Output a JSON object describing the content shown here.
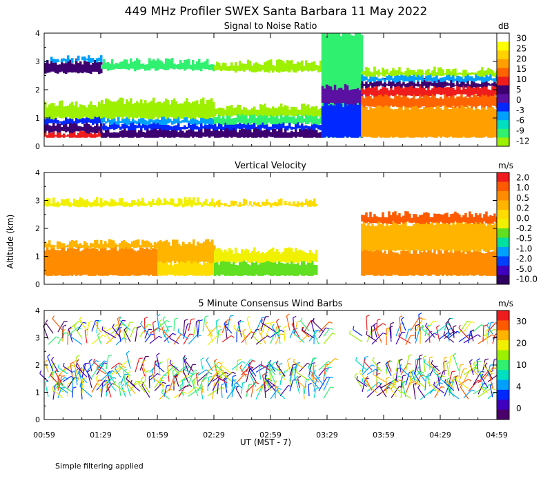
{
  "figure": {
    "title": "449 MHz Profiler SWEX Santa Barbara 11 May 2022",
    "ylabel": "Altitude (km)",
    "xlabel": "UT  (MST - 7)",
    "footnote": "Simple filtering applied"
  },
  "chart_data": [
    {
      "type": "heatmap",
      "title": "Signal to Noise Ratio",
      "unit_label": "dB",
      "ylabel": "Altitude (km)",
      "xlabel": "UT  (MST - 7)",
      "x_ticks": [
        "00:59",
        "01:29",
        "01:59",
        "02:29",
        "02:59",
        "03:29",
        "03:59",
        "04:29",
        "04:59"
      ],
      "xlim": [
        "00:59",
        "04:59"
      ],
      "ylim": [
        0,
        4
      ],
      "y_ticks": [
        0,
        1,
        2,
        3,
        4
      ],
      "colorbar": {
        "labels": [
          "30",
          "25",
          "20",
          "15",
          "10",
          "5",
          "0",
          "-3",
          "-6",
          "-9",
          "-12"
        ],
        "colors": [
          "#ffffff",
          "#ffff00",
          "#ffd200",
          "#ffa000",
          "#ff6400",
          "#ee1c1c",
          "#3c0070",
          "#5a10a0",
          "#0028ff",
          "#00a0ff",
          "#00e0c0",
          "#30f070",
          "#9cf000"
        ]
      },
      "background_top_km": 0.3,
      "segments": [
        {
          "start": "00:59",
          "end": "01:29",
          "layers": [
            [
              0.3,
              0.5,
              "#ee1c1c"
            ],
            [
              0.5,
              0.8,
              "#3c0070"
            ],
            [
              0.8,
              1.0,
              "#0028ff"
            ],
            [
              1.0,
              1.5,
              "#9cf000"
            ],
            [
              2.6,
              3.0,
              "#3c0070"
            ],
            [
              3.0,
              3.1,
              "#00a0ff"
            ]
          ]
        },
        {
          "start": "01:29",
          "end": "02:29",
          "layers": [
            [
              0.3,
              0.6,
              "#3c0070"
            ],
            [
              0.6,
              0.8,
              "#0028ff"
            ],
            [
              0.8,
              1.0,
              "#00a0ff"
            ],
            [
              1.0,
              1.6,
              "#9cf000"
            ],
            [
              2.7,
              3.0,
              "#30f070"
            ]
          ]
        },
        {
          "start": "02:29",
          "end": "03:26",
          "layers": [
            [
              0.3,
              0.6,
              "#3c0070"
            ],
            [
              0.6,
              0.8,
              "#0028ff"
            ],
            [
              0.8,
              1.1,
              "#30f070"
            ],
            [
              1.1,
              1.4,
              "#9cf000"
            ],
            [
              2.65,
              2.95,
              "#9cf000"
            ]
          ]
        },
        {
          "start": "03:26",
          "end": "03:47",
          "layers": [
            [
              0.3,
              4.0,
              "#30f070"
            ],
            [
              0.3,
              1.5,
              "#0028ff"
            ],
            [
              1.5,
              2.1,
              "#5a10a0"
            ]
          ]
        },
        {
          "start": "03:47",
          "end": "04:59",
          "layers": [
            [
              0.3,
              1.4,
              "#ffa000"
            ],
            [
              1.4,
              1.8,
              "#ff6400"
            ],
            [
              1.8,
              2.1,
              "#ee1c1c"
            ],
            [
              2.1,
              2.3,
              "#3c0070"
            ],
            [
              2.3,
              2.5,
              "#00a0ff"
            ],
            [
              2.5,
              2.7,
              "#9cf000"
            ]
          ]
        }
      ]
    },
    {
      "type": "heatmap",
      "title": "Vertical Velocity",
      "unit_label": "m/s",
      "ylabel": "Altitude (km)",
      "xlabel": "UT  (MST - 7)",
      "x_ticks": [
        "00:59",
        "01:29",
        "01:59",
        "02:29",
        "02:59",
        "03:29",
        "03:59",
        "04:29",
        "04:59"
      ],
      "xlim": [
        "00:59",
        "04:59"
      ],
      "ylim": [
        0,
        4
      ],
      "y_ticks": [
        0,
        1,
        2,
        3,
        4
      ],
      "colorbar": {
        "labels": [
          "2.0",
          "1.0",
          "0.5",
          "0.2",
          "0.0",
          "-0.2",
          "-0.5",
          "-1.0",
          "-2.0",
          "-5.0",
          "-10.0"
        ],
        "colors": [
          "#ee1c1c",
          "#ff5a00",
          "#ff8c00",
          "#ffb400",
          "#ffdc00",
          "#f0f000",
          "#60e020",
          "#00e0a0",
          "#00a0ff",
          "#0040ff",
          "#4000c0",
          "#300060"
        ]
      },
      "background_top_km": 0.3,
      "segments": [
        {
          "start": "00:59",
          "end": "01:59",
          "layers": [
            [
              0.3,
              1.3,
              "#ff8c00"
            ],
            [
              1.3,
              1.5,
              "#ffb400"
            ],
            [
              2.8,
              3.0,
              "#f0f000"
            ]
          ]
        },
        {
          "start": "01:59",
          "end": "02:29",
          "layers": [
            [
              0.3,
              0.8,
              "#ffdc00"
            ],
            [
              0.8,
              1.5,
              "#ffb400"
            ],
            [
              2.8,
              3.0,
              "#f0f000"
            ]
          ]
        },
        {
          "start": "02:29",
          "end": "03:23",
          "layers": [
            [
              0.3,
              0.8,
              "#60e020"
            ],
            [
              0.8,
              1.2,
              "#f0f000"
            ],
            [
              2.8,
              2.95,
              "#ffdc00"
            ]
          ]
        },
        {
          "start": "03:47",
          "end": "04:59",
          "layers": [
            [
              0.3,
              1.2,
              "#ff8c00"
            ],
            [
              1.2,
              2.2,
              "#ffb400"
            ],
            [
              2.2,
              2.5,
              "#ff5a00"
            ]
          ]
        }
      ]
    },
    {
      "type": "scatter",
      "title": "5 Minute Consensus Wind Barbs",
      "unit_label": "m/s",
      "ylabel": "Altitude (km)",
      "xlabel": "UT  (MST - 7)",
      "x_ticks": [
        "00:59",
        "01:29",
        "01:59",
        "02:29",
        "02:59",
        "03:29",
        "03:59",
        "04:29",
        "04:59"
      ],
      "xlim": [
        "00:59",
        "04:59"
      ],
      "ylim": [
        0,
        4
      ],
      "y_ticks": [
        0,
        1,
        2,
        3,
        4
      ],
      "colorbar": {
        "labels": [
          "30",
          "20",
          "10",
          "4",
          "0"
        ],
        "colors": [
          "#ee1c1c",
          "#ff5a00",
          "#ffb400",
          "#f0f000",
          "#9cf000",
          "#30f070",
          "#00e0c0",
          "#00a0ff",
          "#0028ff",
          "#4000c0",
          "#4a006a"
        ]
      },
      "altitudes_km": [
        0.8,
        1.0,
        1.2,
        1.4,
        1.6,
        1.8,
        2.8,
        3.0,
        3.2
      ],
      "gap": [
        "03:29",
        "03:47"
      ]
    }
  ]
}
